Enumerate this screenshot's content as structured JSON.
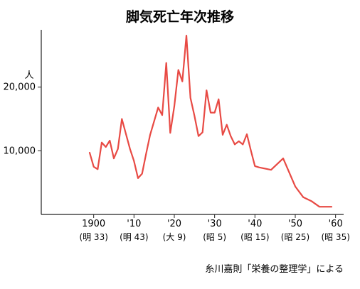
{
  "chart_data": {
    "type": "line",
    "title": "脚気死亡年次推移",
    "ylabel": "人",
    "xlabel": "",
    "xlim": [
      1887,
      1962
    ],
    "ylim": [
      0,
      29000
    ],
    "grid": false,
    "legend": "none",
    "y_ticks": [
      {
        "value": 10000,
        "label": "10,000"
      },
      {
        "value": 20000,
        "label": "20,000"
      }
    ],
    "x_ticks": [
      {
        "value": 1900,
        "label": "1900",
        "sub": "(明 33)"
      },
      {
        "value": 1910,
        "label": "'10",
        "sub": "(明 43)"
      },
      {
        "value": 1920,
        "label": "'20",
        "sub": "(大 9)"
      },
      {
        "value": 1930,
        "label": "'30",
        "sub": "(昭 5)"
      },
      {
        "value": 1940,
        "label": "'40",
        "sub": "(昭 15)"
      },
      {
        "value": 1950,
        "label": "'50",
        "sub": "(昭 25)"
      },
      {
        "value": 1960,
        "label": "'60",
        "sub": "(昭 35)"
      }
    ],
    "series": [
      {
        "color": "#e84a44",
        "x": [
          1899,
          1900,
          1901,
          1902,
          1903,
          1904,
          1905,
          1906,
          1907,
          1909,
          1910,
          1911,
          1912,
          1913,
          1914,
          1916,
          1917,
          1918,
          1919,
          1920,
          1921,
          1922,
          1923,
          1924,
          1925,
          1926,
          1927,
          1928,
          1929,
          1930,
          1931,
          1932,
          1933,
          1934,
          1935,
          1936,
          1937,
          1938,
          1939,
          1940,
          1941,
          1944,
          1947,
          1950,
          1952,
          1954,
          1956,
          1959
        ],
        "y": [
          9700,
          7500,
          7100,
          11300,
          10600,
          11600,
          8800,
          10300,
          15000,
          10300,
          8400,
          5700,
          6400,
          9500,
          12500,
          16800,
          15600,
          23800,
          12800,
          17000,
          22700,
          20900,
          28100,
          18300,
          15500,
          12300,
          12900,
          19500,
          16000,
          16000,
          18100,
          12500,
          14100,
          12300,
          11000,
          11500,
          11000,
          12600,
          10000,
          7600,
          7400,
          7000,
          8800,
          4400,
          2700,
          2100,
          1200,
          1200
        ]
      }
    ]
  },
  "source": "糸川嘉則「栄養の整理学」による"
}
